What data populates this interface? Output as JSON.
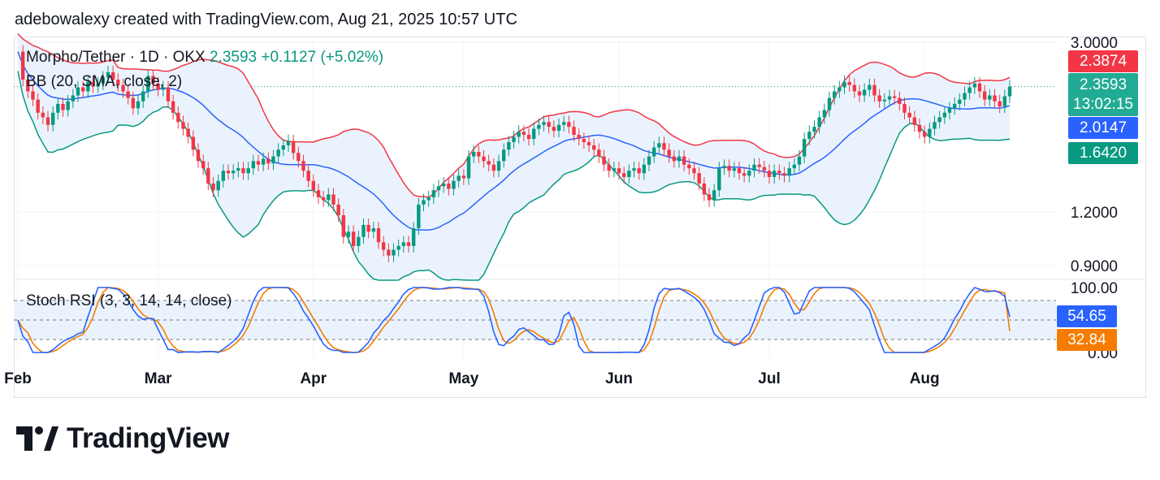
{
  "header": {
    "attribution": "adebowalexy created with TradingView.com, Aug 21, 2025 10:57 UTC"
  },
  "legend": {
    "symbol": "Morpho/Tether · 1D · OKX",
    "price": "2.3593",
    "change": "+0.1127 (+5.02%)",
    "bb_label": "BB (20, SMA, close, 2)",
    "stoch_label": "Stoch RSI (3, 3, 14, 14, close)"
  },
  "logo": {
    "text": "TradingView"
  },
  "colors": {
    "up": "#089981",
    "down": "#f23645",
    "bb_upper": "#f23645",
    "bb_basis": "#2962ff",
    "bb_lower": "#089981",
    "bb_fill": "#eaf3fd",
    "stoch_k": "#2962ff",
    "stoch_d": "#f57c00"
  },
  "price_tags": {
    "upper": "2.3874",
    "last": "2.3593",
    "countdown": "13:02:15",
    "basis": "2.0147",
    "lower": "1.6420",
    "stoch_k": "54.65",
    "stoch_d": "32.84"
  },
  "chart_data": [
    {
      "type": "candlestick",
      "title": "Morpho/Tether · 1D · OKX",
      "y_scale": "log",
      "y_ticks": [
        "3.0000",
        "1.2000",
        "0.9000"
      ],
      "y_tick_values": [
        3.0,
        1.2,
        0.9
      ],
      "x_ticks": [
        "Feb",
        "Mar",
        "Apr",
        "May",
        "Jun",
        "Jul",
        "Aug"
      ],
      "x_tick_days": [
        0,
        28,
        59,
        89,
        120,
        150,
        181
      ],
      "ohlc_close": [
        2.85,
        2.45,
        2.3,
        2.2,
        2.05,
        2.0,
        1.92,
        2.05,
        2.15,
        2.08,
        2.18,
        2.25,
        2.35,
        2.3,
        2.42,
        2.36,
        2.4,
        2.48,
        2.55,
        2.45,
        2.38,
        2.3,
        2.22,
        2.1,
        2.18,
        2.3,
        2.5,
        2.4,
        2.32,
        2.35,
        2.18,
        2.05,
        1.95,
        1.88,
        1.8,
        1.68,
        1.58,
        1.52,
        1.4,
        1.35,
        1.42,
        1.5,
        1.48,
        1.5,
        1.52,
        1.48,
        1.52,
        1.58,
        1.55,
        1.6,
        1.56,
        1.62,
        1.68,
        1.72,
        1.76,
        1.65,
        1.58,
        1.5,
        1.42,
        1.35,
        1.3,
        1.28,
        1.32,
        1.25,
        1.18,
        1.05,
        1.08,
        1.0,
        1.05,
        1.12,
        1.08,
        1.1,
        1.02,
        0.98,
        0.95,
        0.98,
        1.0,
        1.02,
        1.0,
        1.1,
        1.25,
        1.28,
        1.3,
        1.35,
        1.38,
        1.4,
        1.36,
        1.42,
        1.46,
        1.44,
        1.62,
        1.66,
        1.62,
        1.58,
        1.55,
        1.5,
        1.58,
        1.68,
        1.75,
        1.8,
        1.85,
        1.82,
        1.78,
        1.88,
        1.92,
        1.95,
        1.9,
        1.86,
        1.92,
        1.95,
        1.9,
        1.82,
        1.78,
        1.75,
        1.72,
        1.68,
        1.62,
        1.55,
        1.5,
        1.52,
        1.48,
        1.45,
        1.5,
        1.52,
        1.48,
        1.55,
        1.62,
        1.7,
        1.74,
        1.68,
        1.62,
        1.58,
        1.62,
        1.55,
        1.52,
        1.48,
        1.4,
        1.32,
        1.28,
        1.35,
        1.52,
        1.54,
        1.5,
        1.52,
        1.48,
        1.46,
        1.5,
        1.55,
        1.53,
        1.5,
        1.45,
        1.5,
        1.48,
        1.46,
        1.52,
        1.55,
        1.62,
        1.78,
        1.85,
        1.9,
        2.0,
        2.08,
        2.22,
        2.3,
        2.35,
        2.42,
        2.38,
        2.3,
        2.25,
        2.32,
        2.38,
        2.25,
        2.18,
        2.2,
        2.24,
        2.22,
        2.15,
        2.05,
        2.0,
        1.92,
        1.85,
        1.8,
        1.88,
        1.95,
        2.0,
        2.05,
        2.1,
        2.15,
        2.2,
        2.28,
        2.35,
        2.4,
        2.3,
        2.2,
        2.25,
        2.18,
        2.12,
        2.24,
        2.36
      ],
      "bb_upper_end": 2.3874,
      "bb_basis_end": 2.0147,
      "bb_lower_end": 1.642,
      "last_price": 2.3593
    },
    {
      "type": "line",
      "title": "Stoch RSI (3, 3, 14, 14, close)",
      "y_ticks": [
        "100.00",
        "0.00"
      ],
      "y_tick_values": [
        100,
        0
      ],
      "bands": [
        80,
        50,
        20
      ],
      "series": [
        {
          "name": "K",
          "last": 54.65
        },
        {
          "name": "D",
          "last": 32.84
        }
      ]
    }
  ]
}
